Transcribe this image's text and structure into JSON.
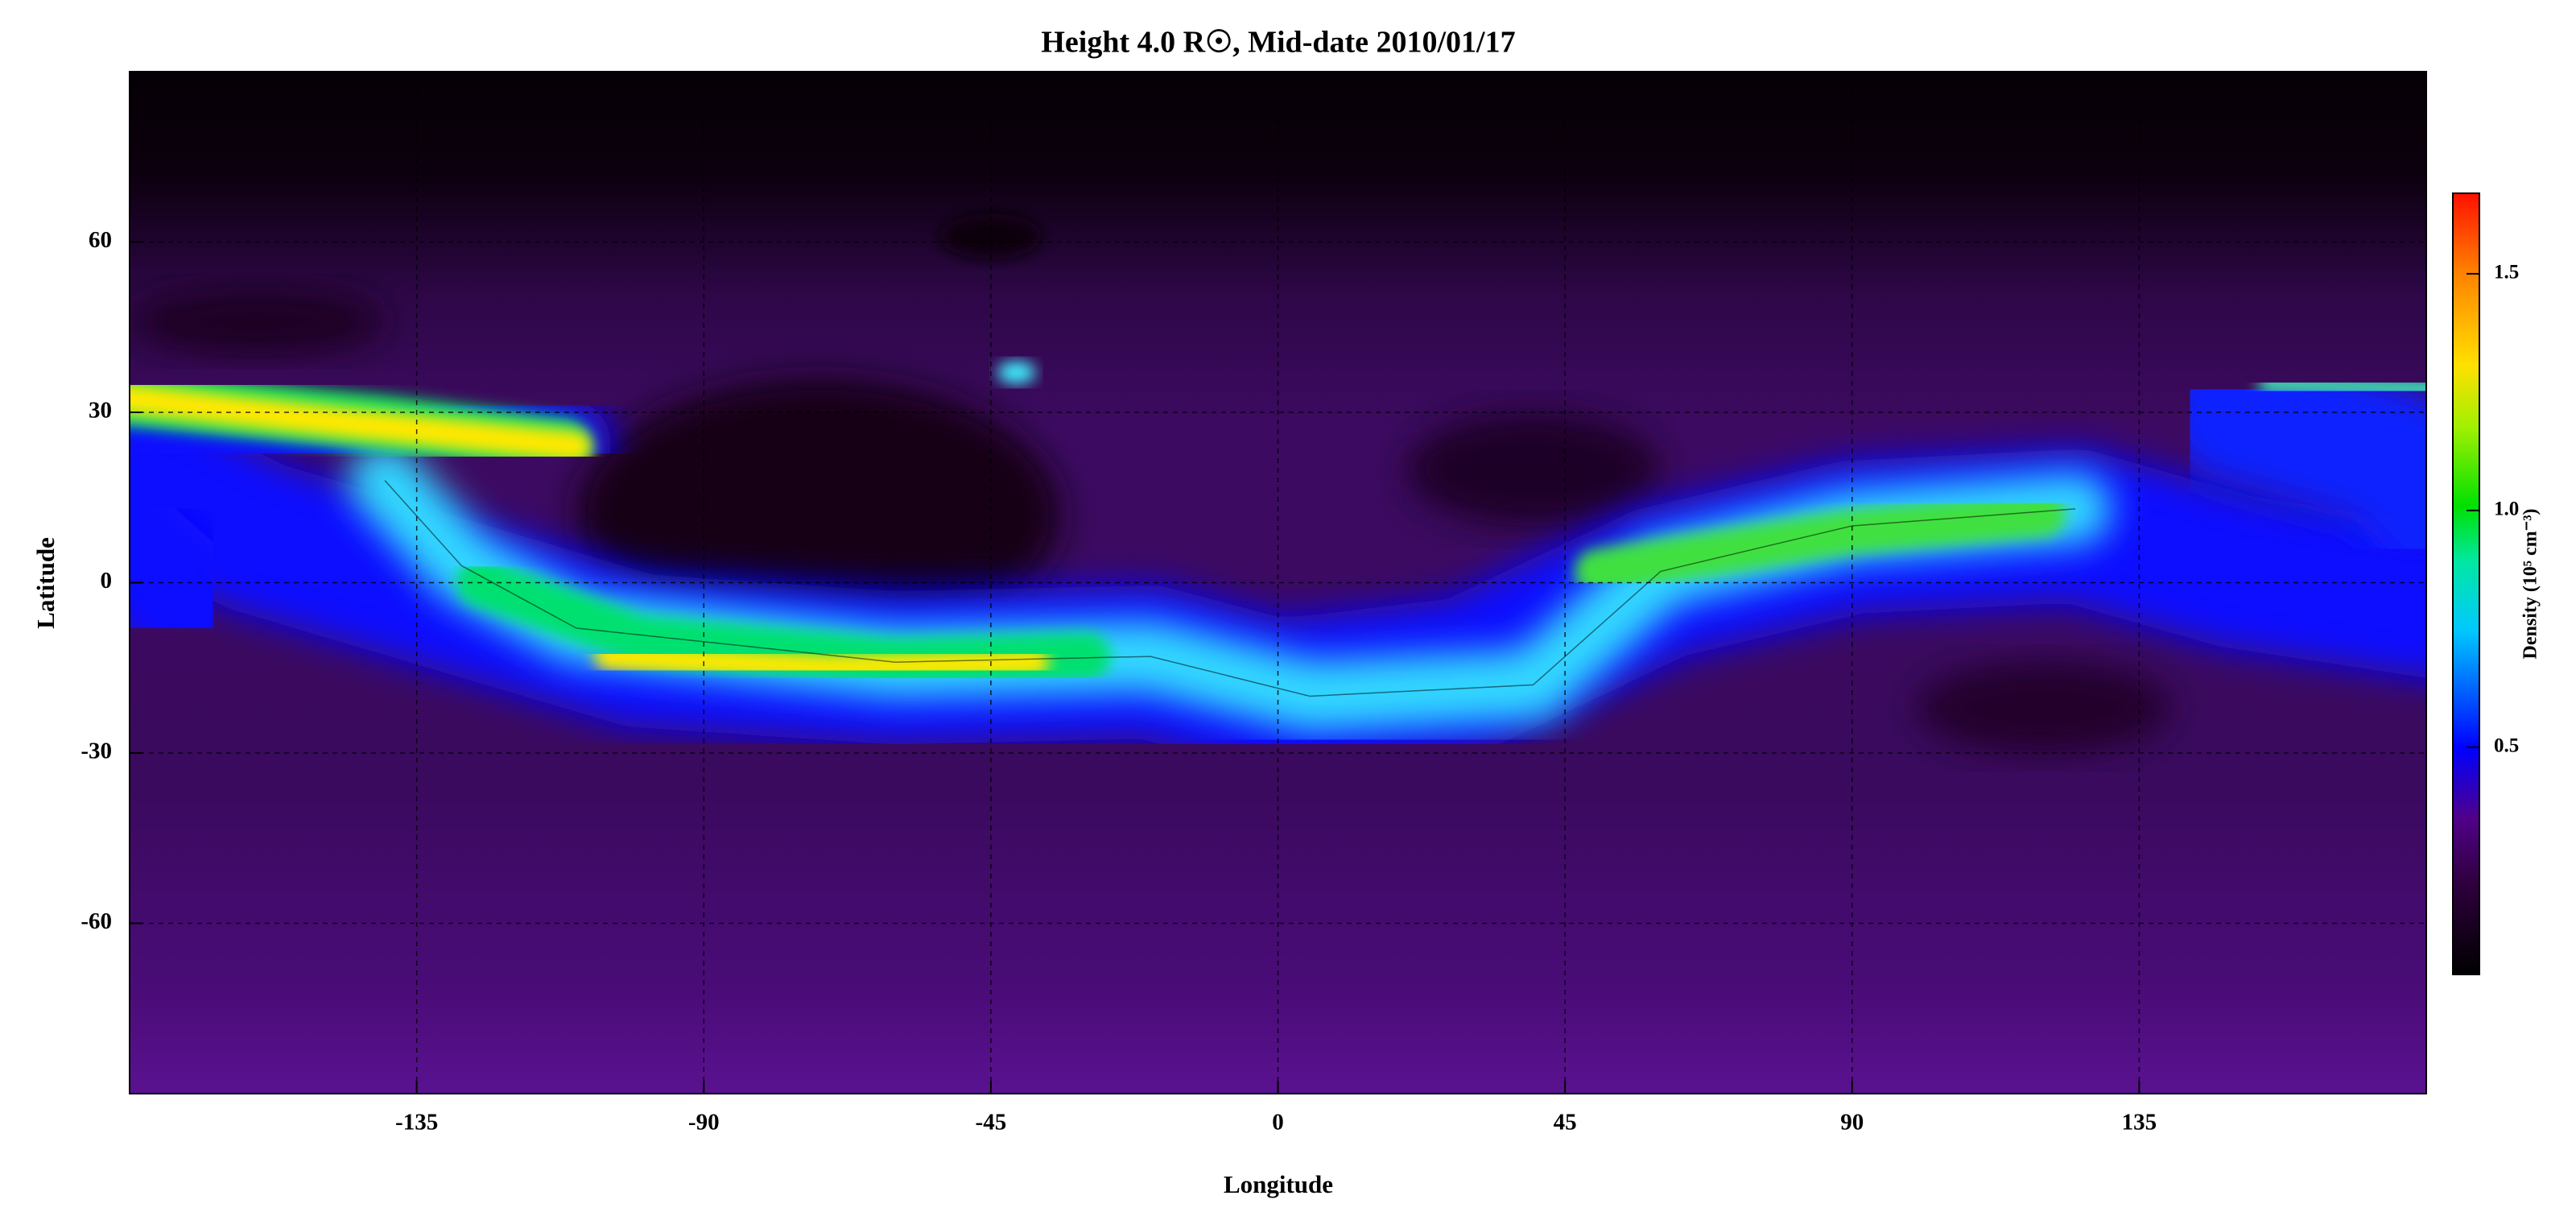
{
  "chart_data": {
    "type": "heatmap",
    "title": "Height 4.0 R☉, Mid-date 2010/01/17",
    "x_label": "Longitude",
    "y_label": "Latitude",
    "xlim": [
      -180,
      180
    ],
    "xticks": [
      -135,
      -90,
      -45,
      0,
      45,
      90,
      135
    ],
    "ylim": [
      -90,
      90
    ],
    "yticks": [
      -60,
      -30,
      0,
      30,
      60
    ],
    "grid": true,
    "colorbar": {
      "label": "Density (10⁵ cm⁻³)",
      "lim": [
        0.02,
        1.67
      ],
      "ticks": [
        0.5,
        {
          "value": 1,
          "label": "1.0"
        },
        1.5
      ]
    }
  }
}
